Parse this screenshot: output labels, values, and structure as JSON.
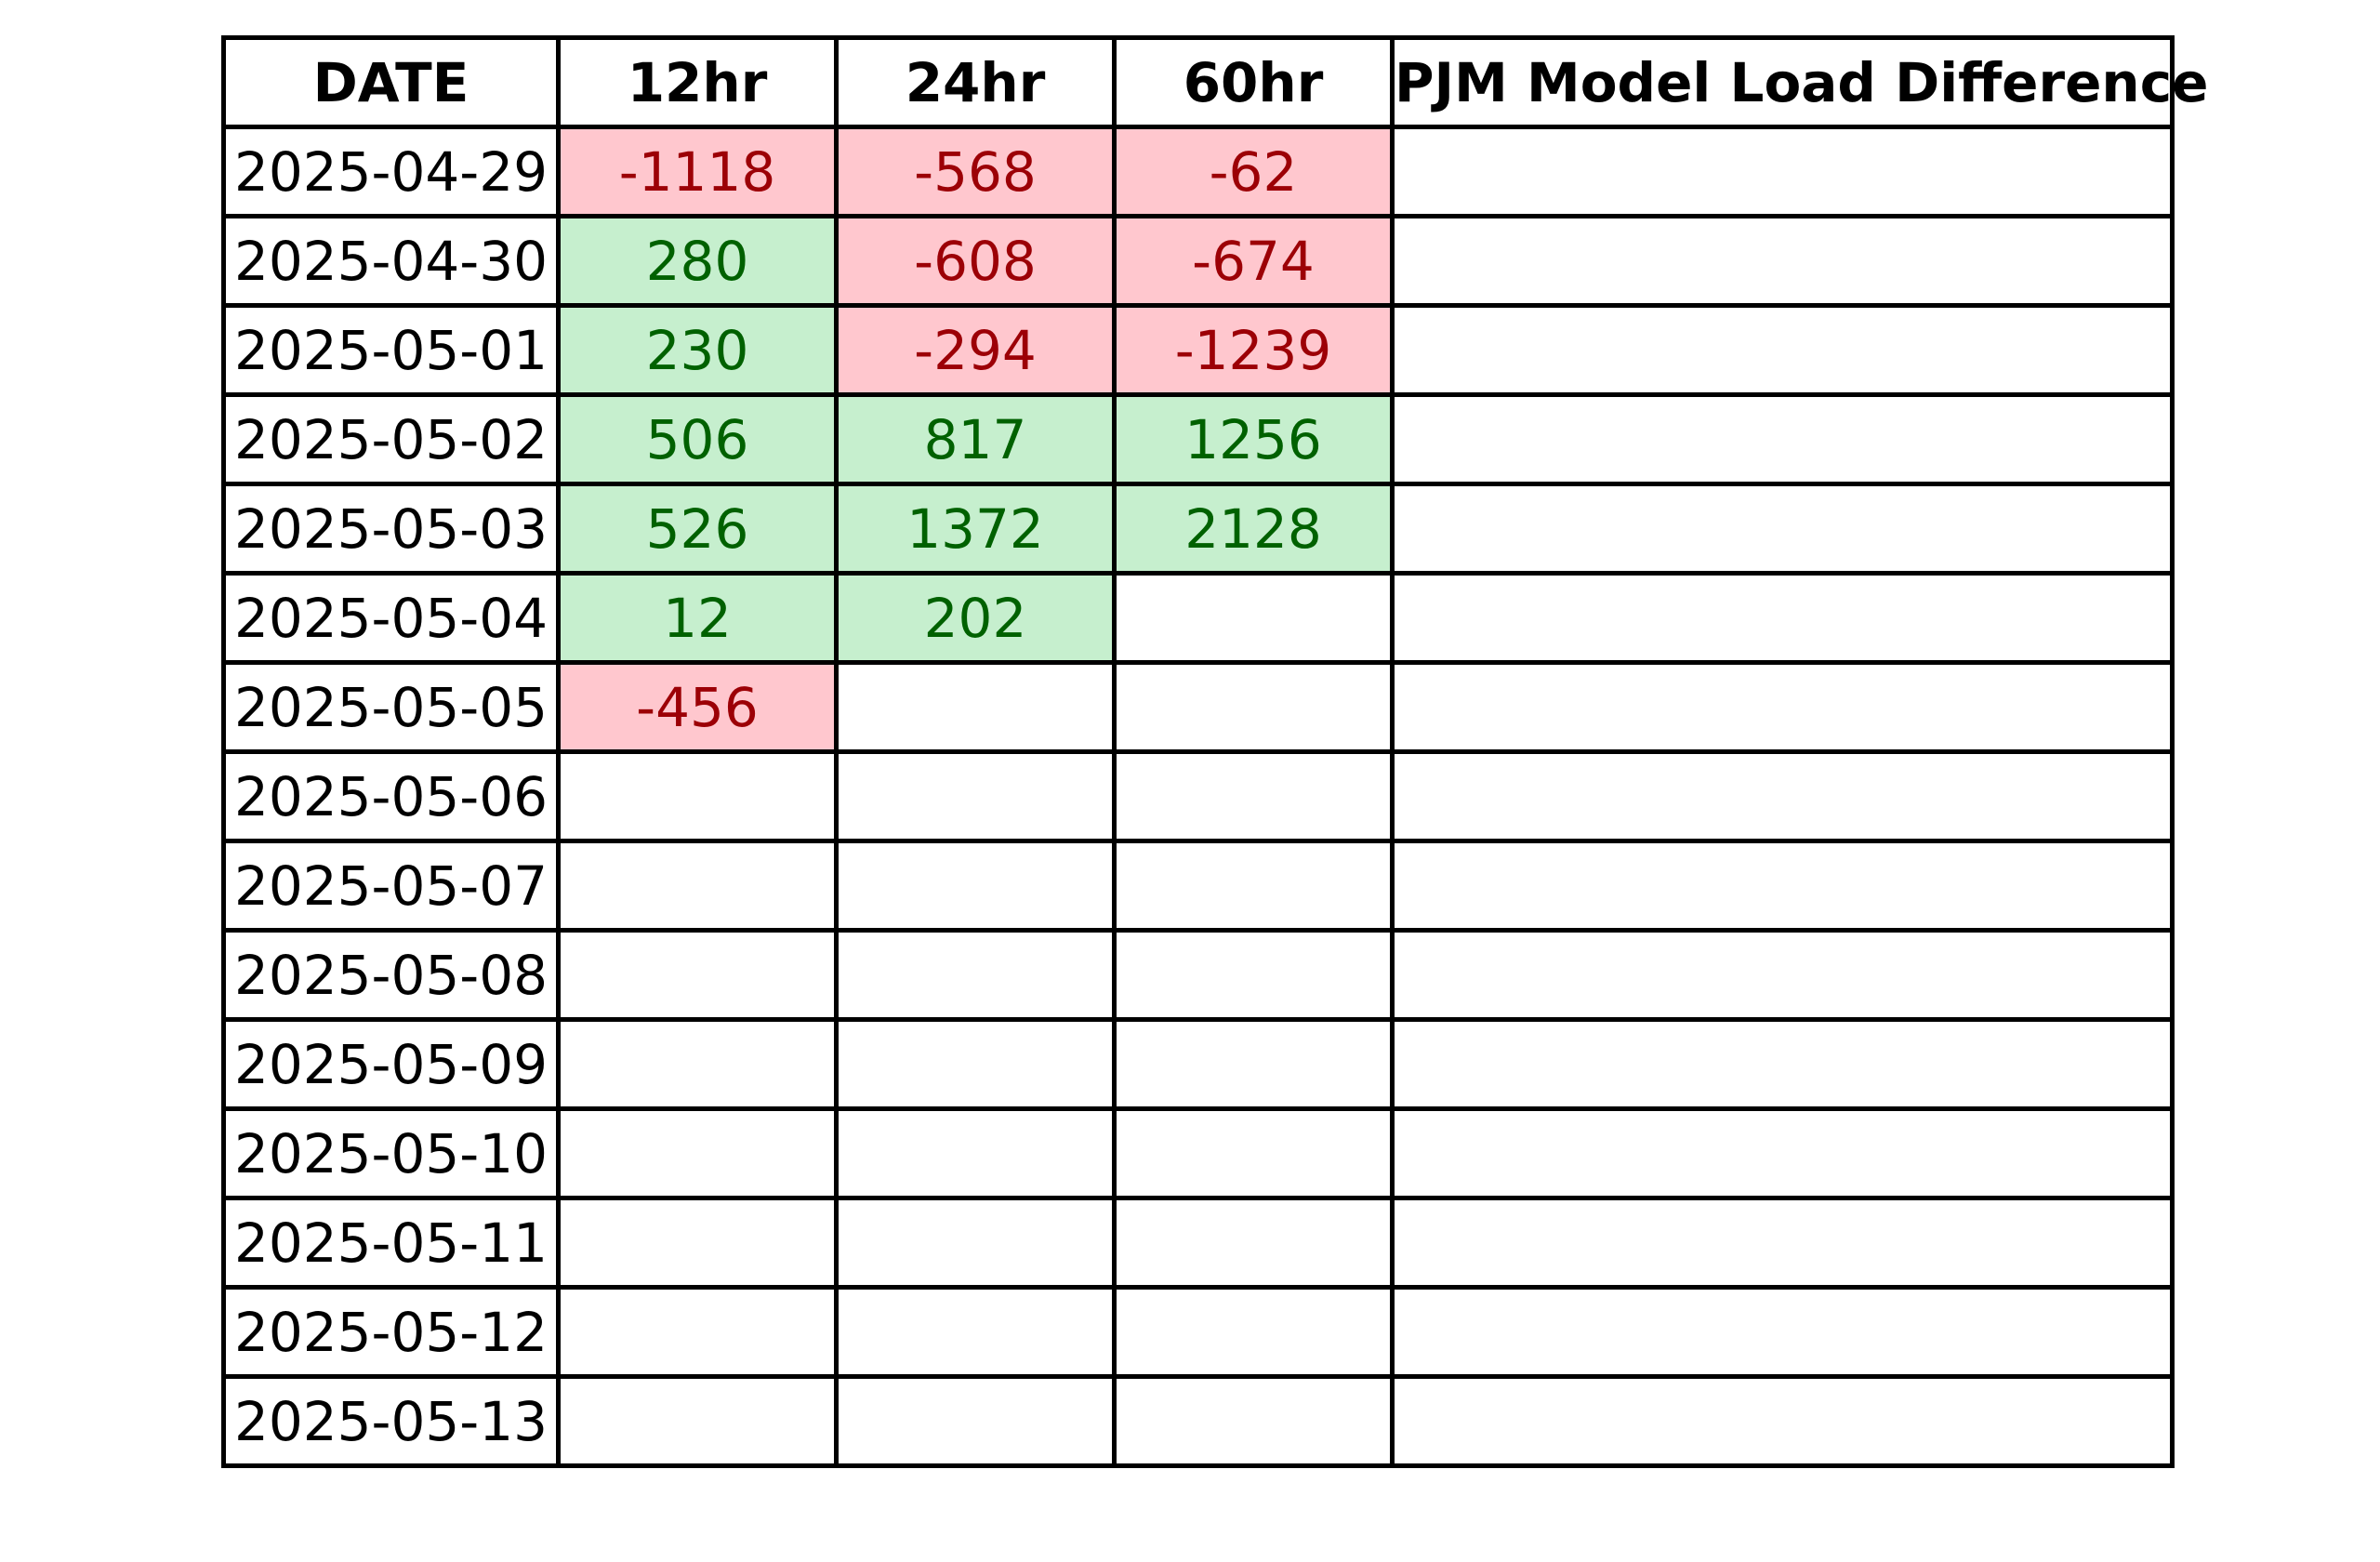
{
  "chart_data": {
    "type": "table",
    "columns": [
      "DATE",
      "12hr",
      "24hr",
      "60hr",
      "PJM Model Load Difference"
    ],
    "rows": [
      [
        "2025-04-29",
        "-1118",
        "-568",
        "-62",
        ""
      ],
      [
        "2025-04-30",
        "280",
        "-608",
        "-674",
        ""
      ],
      [
        "2025-05-01",
        "230",
        "-294",
        "-1239",
        ""
      ],
      [
        "2025-05-02",
        "506",
        "817",
        "1256",
        ""
      ],
      [
        "2025-05-03",
        "526",
        "1372",
        "2128",
        ""
      ],
      [
        "2025-05-04",
        "12",
        "202",
        "",
        ""
      ],
      [
        "2025-05-05",
        "-456",
        "",
        "",
        ""
      ],
      [
        "2025-05-06",
        "",
        "",
        "",
        ""
      ],
      [
        "2025-05-07",
        "",
        "",
        "",
        ""
      ],
      [
        "2025-05-08",
        "",
        "",
        "",
        ""
      ],
      [
        "2025-05-09",
        "",
        "",
        "",
        ""
      ],
      [
        "2025-05-10",
        "",
        "",
        "",
        ""
      ],
      [
        "2025-05-11",
        "",
        "",
        "",
        ""
      ],
      [
        "2025-05-12",
        "",
        "",
        "",
        ""
      ],
      [
        "2025-05-13",
        "",
        "",
        "",
        ""
      ]
    ],
    "colors": {
      "positive_fill": "#c6efce",
      "positive_text": "#006100",
      "negative_fill": "#ffc7ce",
      "negative_text": "#9c0006",
      "border": "#000000"
    }
  }
}
